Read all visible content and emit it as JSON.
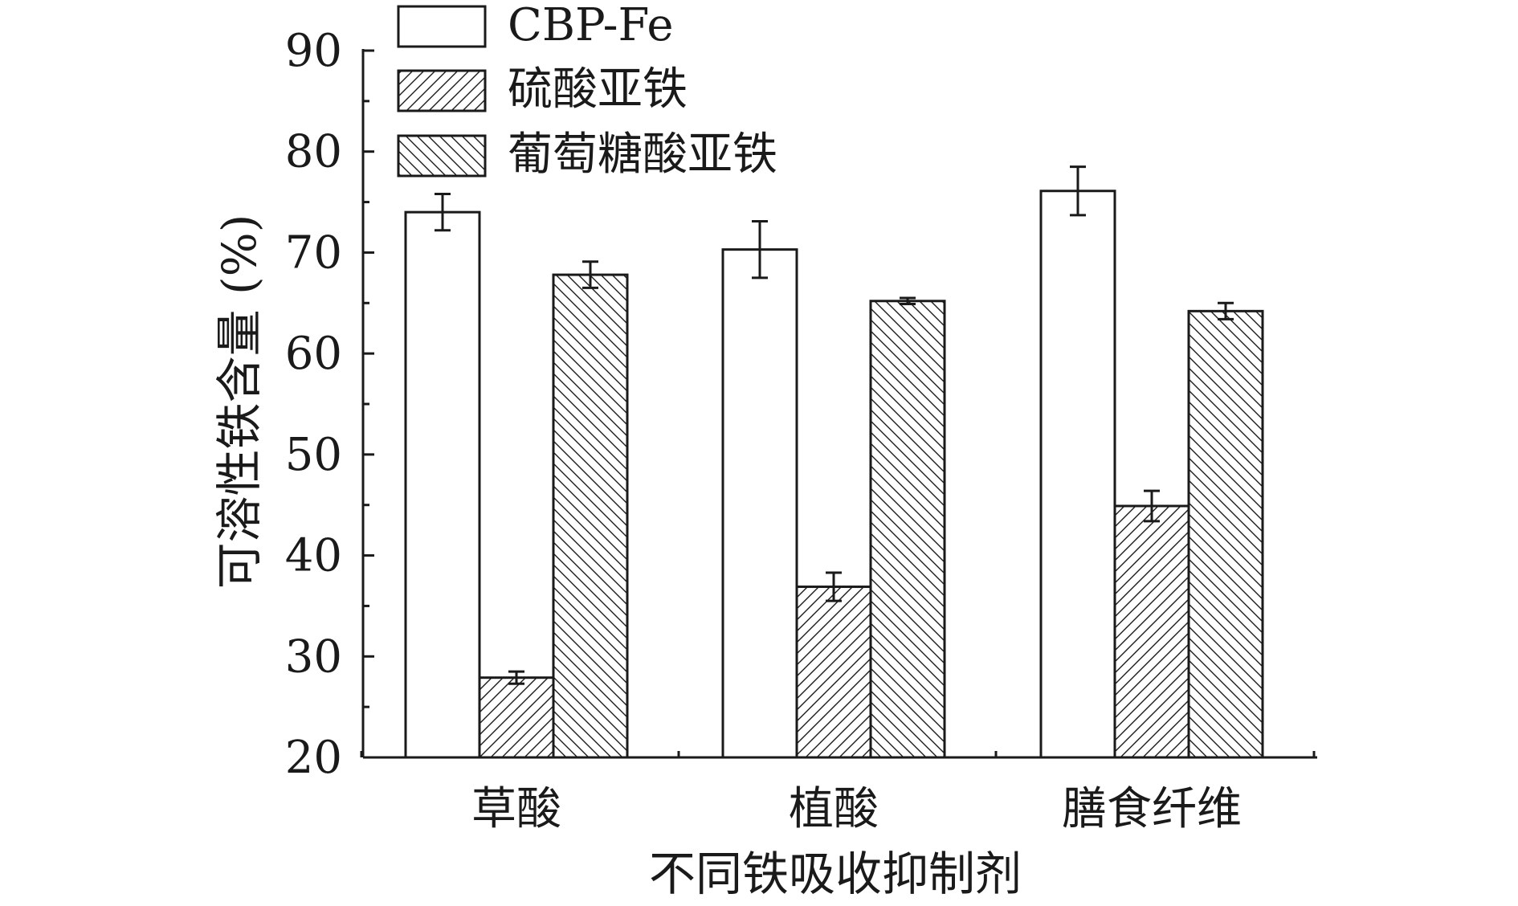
{
  "chart_data": {
    "type": "bar",
    "xlabel": "不同铁吸收抑制剂",
    "ylabel": "可溶性铁含量 (%)",
    "ylim": [
      20,
      90
    ],
    "yticks": [
      20,
      30,
      40,
      50,
      60,
      70,
      80,
      90
    ],
    "categories": [
      "草酸",
      "植酸",
      "膳食纤维"
    ],
    "series": [
      {
        "name": "CBP-Fe",
        "pattern": "none",
        "values": [
          74.0,
          70.3,
          76.1
        ],
        "errors": [
          1.8,
          2.8,
          2.4
        ]
      },
      {
        "name": "硫酸亚铁",
        "pattern": "hatch-forward",
        "values": [
          27.9,
          36.9,
          44.9
        ],
        "errors": [
          0.6,
          1.4,
          1.5
        ]
      },
      {
        "name": "葡萄糖酸亚铁",
        "pattern": "hatch-backward",
        "values": [
          67.8,
          65.2,
          64.2
        ],
        "errors": [
          1.3,
          0.3,
          0.8
        ]
      }
    ],
    "legend_position": "top-left",
    "grid": false,
    "colors": {
      "bar_fill": "#ffffff",
      "stroke": "#1a1a1a"
    }
  }
}
